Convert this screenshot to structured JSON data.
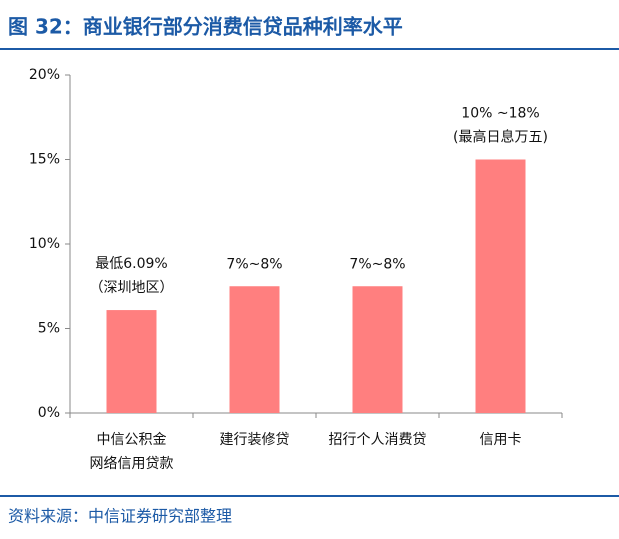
{
  "title": "图 32：商业银行部分消费信贷品种利率水平",
  "source": "资料来源：中信证券研究部整理",
  "chart_data": {
    "type": "bar",
    "categories": [
      "中信公积金\n网络信用贷款",
      "建行装修贷",
      "招行个人消费贷",
      "信用卡"
    ],
    "values": [
      6.09,
      7.5,
      7.5,
      15
    ],
    "annotations": [
      "最低6.09%\n（深圳地区）",
      "7%~8%",
      "7%~8%",
      "10% ~18%\n(最高日息万五)"
    ],
    "color": "#ff7f7f",
    "ylim": [
      0,
      20
    ],
    "yticks": [
      {
        "value": 0,
        "label": "0%"
      },
      {
        "value": 5,
        "label": "5%"
      },
      {
        "value": 10,
        "label": "10%"
      },
      {
        "value": 15,
        "label": "15%"
      },
      {
        "value": 20,
        "label": "20%"
      }
    ],
    "grid": false
  }
}
